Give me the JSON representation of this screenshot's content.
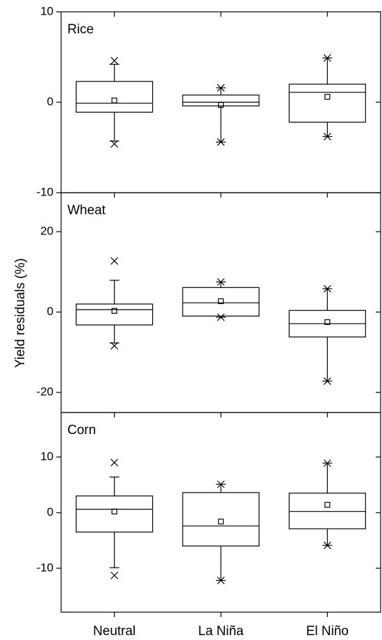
{
  "chart_data": [
    {
      "type": "box",
      "title": "Rice",
      "ylim": [
        -10,
        10
      ],
      "yticks": [
        -10,
        0,
        10
      ],
      "boxes": [
        {
          "low": -4.3,
          "q1": -1.1,
          "median": -0.1,
          "q3": 2.3,
          "high": 4.2,
          "mean": 0.2,
          "min": -4.6,
          "max": 4.6
        },
        {
          "low": -4.4,
          "q1": -0.4,
          "median": 0.0,
          "q3": 0.8,
          "high": 1.6,
          "mean": -0.3,
          "min": -4.4,
          "max": 1.6
        },
        {
          "low": -3.8,
          "q1": -2.2,
          "median": 1.1,
          "q3": 2.0,
          "high": 4.9,
          "mean": 0.6,
          "min": -3.8,
          "max": 4.9
        }
      ]
    },
    {
      "type": "box",
      "title": "Wheat",
      "ylabel": "Yield residuals (%)",
      "ylim": [
        -25,
        29.7
      ],
      "yticks": [
        -20,
        0,
        20
      ],
      "boxes": [
        {
          "low": -7.7,
          "q1": -3.2,
          "median": 0.6,
          "q3": 2.0,
          "high": 7.9,
          "mean": 0.3,
          "min": -8.4,
          "max": 12.7
        },
        {
          "low": -1.3,
          "q1": -1.0,
          "median": 2.3,
          "q3": 6.1,
          "high": 7.5,
          "mean": 2.7,
          "min": -1.3,
          "max": 7.5
        },
        {
          "low": -17.2,
          "q1": -6.2,
          "median": -2.9,
          "q3": 0.4,
          "high": 5.8,
          "mean": -2.5,
          "min": -17.2,
          "max": 5.8
        }
      ]
    },
    {
      "type": "box",
      "title": "Corn",
      "ylim": [
        -17.9,
        18
      ],
      "yticks": [
        -10,
        0,
        10
      ],
      "categories": [
        "Neutral",
        "La Niña",
        "El Niño"
      ],
      "boxes": [
        {
          "low": -9.9,
          "q1": -3.5,
          "median": 0.6,
          "q3": 3.0,
          "high": 6.4,
          "mean": 0.2,
          "min": -11.3,
          "max": 9.0
        },
        {
          "low": -12.2,
          "q1": -6.0,
          "median": -2.4,
          "q3": 3.6,
          "high": 5.1,
          "mean": -1.6,
          "min": -12.2,
          "max": 5.1
        },
        {
          "low": -5.9,
          "q1": -2.9,
          "median": 0.2,
          "q3": 3.5,
          "high": 8.9,
          "mean": 1.4,
          "min": -5.9,
          "max": 8.9
        }
      ]
    }
  ]
}
